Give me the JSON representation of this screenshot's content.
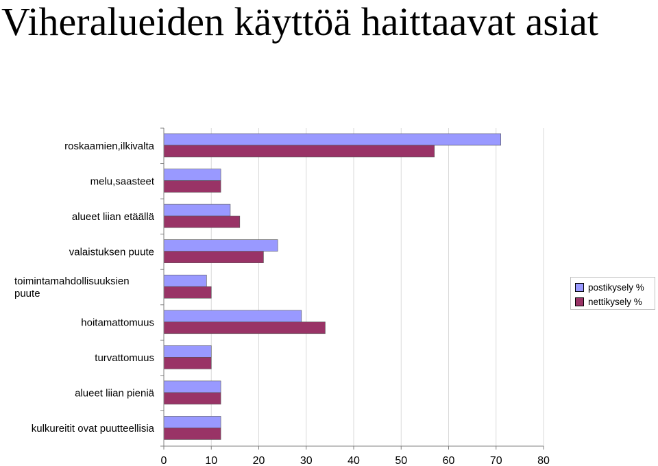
{
  "chart_data": {
    "type": "bar",
    "orientation": "horizontal",
    "title": "Viheralueiden käyttöä haittaavat asiat",
    "categories": [
      "roskaamien,ilkivalta",
      "melu,saasteet",
      "alueet liian etäällä",
      "valaistuksen puute",
      "toimintamahdollisuuksien puute",
      "hoitamattomuus",
      "turvattomuus",
      "alueet liian pieniä",
      "kulkureitit ovat puutteellisia"
    ],
    "category_lines": [
      [
        "roskaamien,ilkivalta"
      ],
      [
        "melu,saasteet"
      ],
      [
        "alueet liian etäällä"
      ],
      [
        "valaistuksen puute"
      ],
      [
        "toimintamahdollisuuksien",
        "puute"
      ],
      [
        "hoitamattomuus"
      ],
      [
        "turvattomuus"
      ],
      [
        "alueet liian pieniä"
      ],
      [
        "kulkureitit ovat puutteellisia"
      ]
    ],
    "series": [
      {
        "name": "postikysely %",
        "color": "#9999ff",
        "values": [
          71,
          12,
          14,
          24,
          9,
          29,
          10,
          12,
          12
        ]
      },
      {
        "name": "nettikysely %",
        "color": "#993366",
        "values": [
          57,
          12,
          16,
          21,
          10,
          34,
          10,
          12,
          12
        ]
      }
    ],
    "xlim": [
      0,
      80
    ],
    "xticks": [
      0,
      10,
      20,
      30,
      40,
      50,
      60,
      70,
      80
    ],
    "grid": "vertical",
    "grid_color": "#d9d9d9",
    "legend_position": "right"
  }
}
